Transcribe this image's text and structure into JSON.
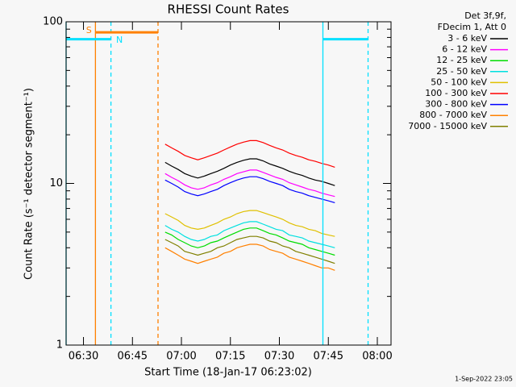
{
  "chart_data": {
    "type": "line",
    "title": "RHESSI Count Rates",
    "xlabel": "Start Time (18-Jan-17 06:23:02)",
    "ylabel": "Count Rate (s⁻¹ detector segment⁻¹)",
    "legend_header": [
      "Det 3f,9f,",
      "FDecim 1, Att 0"
    ],
    "legend": "outside-right-top",
    "footer": "1-Sep-2022 23:05",
    "ylog": true,
    "ylim": [
      1,
      100
    ],
    "yticks": [
      1,
      10,
      100
    ],
    "yminorticks": [
      2,
      3,
      4,
      5,
      6,
      7,
      8,
      9,
      20,
      30,
      40,
      50,
      60,
      70,
      80,
      90
    ],
    "xlim": [
      "06:24:41",
      "08:04:12"
    ],
    "xticks": [
      "06:30",
      "06:45",
      "07:00",
      "07:15",
      "07:30",
      "07:45",
      "08:00"
    ],
    "x": [
      "06:55",
      "06:57",
      "06:59",
      "07:01",
      "07:03",
      "07:05",
      "07:07",
      "07:09",
      "07:11",
      "07:13",
      "07:15",
      "07:17",
      "07:19",
      "07:21",
      "07:23",
      "07:25",
      "07:27",
      "07:29",
      "07:31",
      "07:33",
      "07:35",
      "07:37",
      "07:39",
      "07:41",
      "07:43",
      "07:45",
      "07:47"
    ],
    "series": [
      {
        "name": "3 - 6 keV",
        "color": "#000000",
        "values": [
          13.5,
          12.8,
          12.2,
          11.5,
          11.1,
          10.8,
          11.1,
          11.5,
          11.9,
          12.4,
          13,
          13.5,
          13.9,
          14.2,
          14.2,
          13.8,
          13.2,
          12.8,
          12.4,
          11.9,
          11.5,
          11.2,
          10.8,
          10.5,
          10.3,
          10,
          9.7
        ]
      },
      {
        "name": "6 - 12 keV",
        "color": "#ff00ff",
        "values": [
          11.5,
          10.9,
          10.4,
          9.8,
          9.4,
          9.2,
          9.4,
          9.8,
          10.1,
          10.6,
          11,
          11.5,
          11.8,
          12.1,
          12.1,
          11.7,
          11.3,
          10.9,
          10.6,
          10.1,
          9.8,
          9.5,
          9.2,
          9,
          8.7,
          8.5,
          8.3
        ]
      },
      {
        "name": "12 - 25 keV",
        "color": "#00dd00",
        "values": [
          5,
          4.8,
          4.5,
          4.3,
          4.1,
          4,
          4.1,
          4.3,
          4.4,
          4.6,
          4.8,
          5,
          5.2,
          5.3,
          5.3,
          5.1,
          4.9,
          4.8,
          4.6,
          4.4,
          4.3,
          4.2,
          4,
          3.9,
          3.8,
          3.7,
          3.6
        ]
      },
      {
        "name": "25 - 50 keV",
        "color": "#00e0e0",
        "values": [
          5.5,
          5.2,
          5,
          4.7,
          4.5,
          4.4,
          4.5,
          4.7,
          4.8,
          5.1,
          5.3,
          5.5,
          5.7,
          5.8,
          5.8,
          5.6,
          5.4,
          5.2,
          5.1,
          4.8,
          4.7,
          4.6,
          4.4,
          4.3,
          4.2,
          4.1,
          4
        ]
      },
      {
        "name": "50 - 100 keV",
        "color": "#e0c000",
        "values": [
          6.5,
          6.2,
          5.9,
          5.5,
          5.3,
          5.2,
          5.3,
          5.5,
          5.7,
          6,
          6.2,
          6.5,
          6.7,
          6.8,
          6.8,
          6.6,
          6.4,
          6.2,
          6,
          5.7,
          5.5,
          5.4,
          5.2,
          5.1,
          4.9,
          4.8,
          4.7
        ]
      },
      {
        "name": "100 - 300 keV",
        "color": "#ff0000",
        "values": [
          17.5,
          16.6,
          15.8,
          14.9,
          14.4,
          14,
          14.4,
          14.9,
          15.4,
          16.1,
          16.8,
          17.5,
          18,
          18.4,
          18.4,
          17.9,
          17.2,
          16.6,
          16.1,
          15.4,
          14.9,
          14.5,
          14,
          13.7,
          13.3,
          13,
          12.6
        ]
      },
      {
        "name": "300 - 800 keV",
        "color": "#0000ff",
        "values": [
          10.5,
          10,
          9.5,
          8.9,
          8.6,
          8.4,
          8.6,
          8.9,
          9.2,
          9.7,
          10.1,
          10.5,
          10.8,
          11,
          11,
          10.7,
          10.3,
          10,
          9.7,
          9.2,
          8.9,
          8.7,
          8.4,
          8.2,
          8,
          7.8,
          7.6
        ]
      },
      {
        "name": "800 - 7000 keV",
        "color": "#ff8000",
        "values": [
          4,
          3.8,
          3.6,
          3.4,
          3.3,
          3.2,
          3.3,
          3.4,
          3.5,
          3.7,
          3.8,
          4,
          4.1,
          4.2,
          4.2,
          4.1,
          3.9,
          3.8,
          3.7,
          3.5,
          3.4,
          3.3,
          3.2,
          3.1,
          3,
          3,
          2.9
        ]
      },
      {
        "name": "7000 - 15000 keV",
        "color": "#808000",
        "values": [
          4.5,
          4.3,
          4.1,
          3.8,
          3.7,
          3.6,
          3.7,
          3.8,
          4,
          4.1,
          4.3,
          4.5,
          4.6,
          4.7,
          4.7,
          4.6,
          4.4,
          4.3,
          4.1,
          4,
          3.8,
          3.7,
          3.6,
          3.5,
          3.4,
          3.3,
          3.2
        ]
      }
    ],
    "markers": [
      {
        "x": "06:24:41",
        "color": "#00e0ff",
        "dashed": false
      },
      {
        "x": "06:33:40",
        "color": "#ff8000",
        "dashed": false
      },
      {
        "x": "06:38:25",
        "color": "#00e0ff",
        "dashed": true
      },
      {
        "x": "06:52:50",
        "color": "#ff8000",
        "dashed": true
      },
      {
        "x": "07:43:20",
        "color": "#00e0ff",
        "dashed": false
      },
      {
        "x": "07:57:10",
        "color": "#00e0ff",
        "dashed": true
      }
    ],
    "bars": [
      {
        "start": "06:24:41",
        "end": "06:38:25",
        "y": 78,
        "color": "#00e0ff"
      },
      {
        "start": "06:33:40",
        "end": "06:52:50",
        "y": 86,
        "color": "#ff8000"
      },
      {
        "start": "07:43:20",
        "end": "07:57:10",
        "y": 78,
        "color": "#00e0ff"
      }
    ],
    "flags": [
      {
        "label": "S",
        "x": "06:31:40",
        "y": 88,
        "color": "#ff8000"
      },
      {
        "label": "N",
        "x": "06:41:00",
        "y": 77,
        "color": "#00e0ff"
      }
    ]
  }
}
